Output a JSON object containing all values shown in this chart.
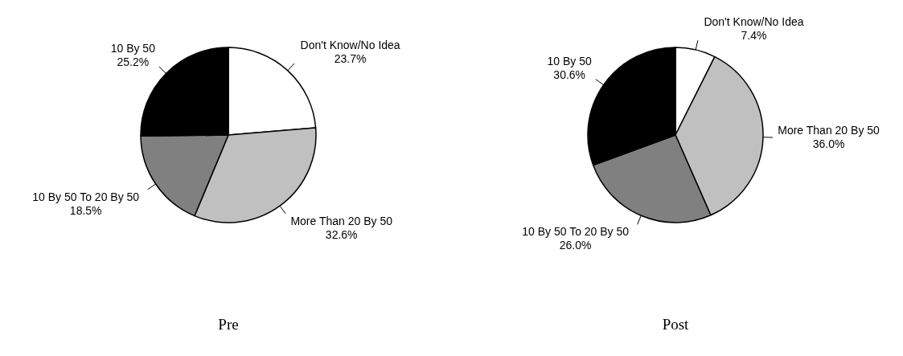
{
  "chart_data": [
    {
      "type": "pie",
      "title": "Pre",
      "categories": [
        "Don't Know/No Idea",
        "More Than 20 By 50",
        "10 By 50 To 20 By 50",
        "10 By 50"
      ],
      "values": [
        23.7,
        32.6,
        18.5,
        25.2
      ],
      "value_labels": [
        "23.7%",
        "32.6%",
        "18.5%",
        "25.2%"
      ],
      "colors": [
        "#ffffff",
        "#c0c0c0",
        "#808080",
        "#000000"
      ]
    },
    {
      "type": "pie",
      "title": "Post",
      "categories": [
        "Don't Know/No Idea",
        "More Than 20 By 50",
        "10 By 50 To 20 By 50",
        "10 By 50"
      ],
      "values": [
        7.4,
        36.0,
        26.0,
        30.6
      ],
      "value_labels": [
        "7.4%",
        "36.0%",
        "26.0%",
        "30.6%"
      ],
      "colors": [
        "#ffffff",
        "#c0c0c0",
        "#808080",
        "#000000"
      ]
    }
  ]
}
